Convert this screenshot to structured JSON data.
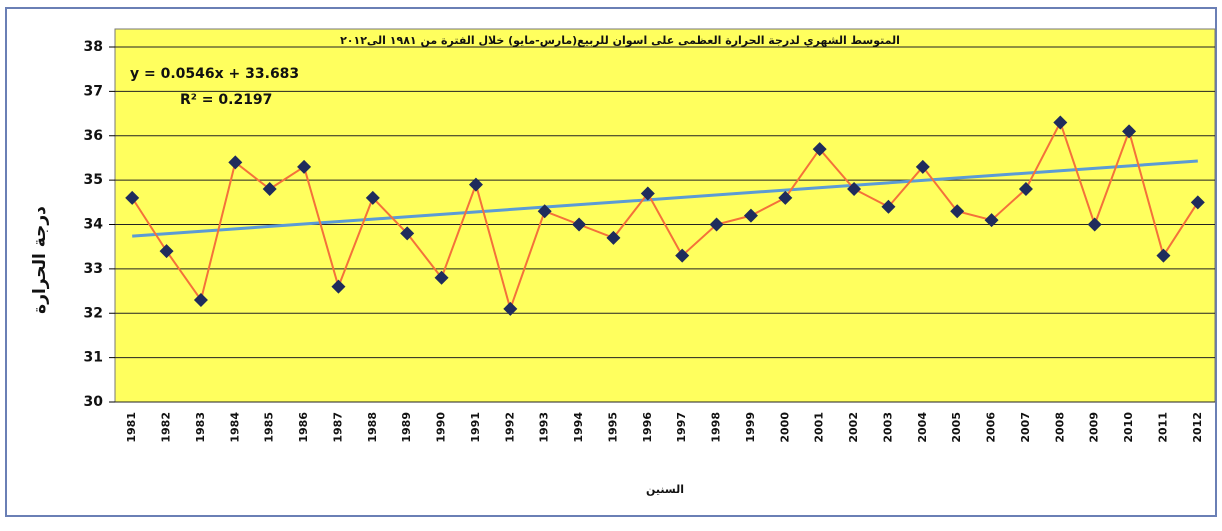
{
  "chart_data": {
    "type": "line",
    "title": "المتوسط الشهري لدرجة الحرارة العظمى على اسوان للربيع(مارس-مايو) خلال الفترة من ١٩٨١ الى٢٠١٢",
    "x_label": "السنين",
    "y_label": "درجة الحرارة",
    "categories": [
      "1981",
      "1982",
      "1983",
      "1984",
      "1985",
      "1986",
      "1987",
      "1988",
      "1989",
      "1990",
      "1991",
      "1992",
      "1993",
      "1994",
      "1995",
      "1996",
      "1997",
      "1998",
      "1999",
      "2000",
      "2001",
      "2002",
      "2003",
      "2004",
      "2005",
      "2006",
      "2007",
      "2008",
      "2009",
      "2010",
      "2011",
      "2012"
    ],
    "series": [
      {
        "color": "#f4713a",
        "marker_color": "#1f2c5c",
        "values": [
          34.6,
          33.4,
          32.3,
          35.4,
          34.8,
          35.3,
          32.6,
          34.6,
          33.8,
          32.8,
          34.9,
          32.1,
          34.3,
          34.0,
          33.7,
          34.7,
          33.3,
          34.0,
          34.2,
          34.6,
          35.7,
          34.8,
          34.4,
          35.3,
          34.3,
          34.1,
          34.8,
          36.3,
          34.0,
          36.1,
          33.3,
          34.5
        ]
      }
    ],
    "trendline": {
      "slope": 0.0546,
      "intercept": 33.683,
      "color": "#5b9bd5",
      "label": "y = 0.0546x + 33.683",
      "r2_label": "R² = 0.2197"
    },
    "ylim": [
      30,
      38
    ],
    "yticks": [
      30,
      31,
      32,
      33,
      34,
      35,
      36,
      37,
      38
    ],
    "grid": true,
    "background": "#ffff5e"
  }
}
